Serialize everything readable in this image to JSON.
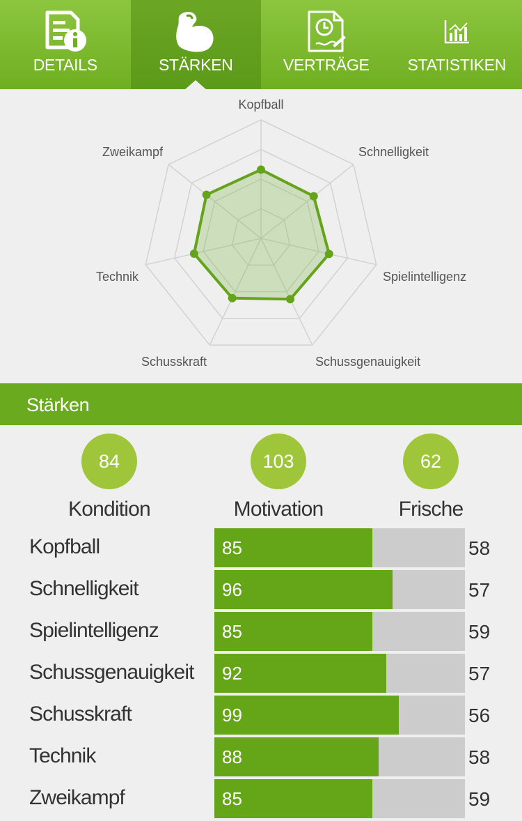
{
  "tabs": [
    {
      "label": "DETAILS",
      "icon": "details-icon"
    },
    {
      "label": "STÄRKEN",
      "icon": "muscle-icon"
    },
    {
      "label": "VERTRÄGE",
      "icon": "contract-icon"
    },
    {
      "label": "STATISTIKEN",
      "icon": "statistics-icon"
    }
  ],
  "active_tab": "STÄRKEN",
  "colors": {
    "accent": "#6aaa1e",
    "accent_light": "#8cc63f",
    "circle": "#9fc63b",
    "bar_track": "#cccccc",
    "bar_fill": "#65a518"
  },
  "chart_data": {
    "type": "radar",
    "axes": [
      "Kopfball",
      "Schnelligkeit",
      "Spielintelligenz",
      "Schussgenauigkeit",
      "Schusskraft",
      "Technik",
      "Zweikampf"
    ],
    "values": [
      58,
      57,
      59,
      57,
      56,
      58,
      59
    ],
    "range": [
      0,
      100
    ],
    "grid_levels": 4
  },
  "section": {
    "title": "Stärken"
  },
  "stats": [
    {
      "label": "Kondition",
      "value": "84"
    },
    {
      "label": "Motivation",
      "value": "103"
    },
    {
      "label": "Frische",
      "value": "62"
    }
  ],
  "attributes": [
    {
      "name": "Kopfball",
      "bar_value": "85",
      "fill_percent": 63,
      "right_value": "58"
    },
    {
      "name": "Schnelligkeit",
      "bar_value": "96",
      "fill_percent": 71,
      "right_value": "57"
    },
    {
      "name": "Spielintelligenz",
      "bar_value": "85",
      "fill_percent": 63,
      "right_value": "59"
    },
    {
      "name": "Schussgenauigkeit",
      "bar_value": "92",
      "fill_percent": 68.5,
      "right_value": "57"
    },
    {
      "name": "Schusskraft",
      "bar_value": "99",
      "fill_percent": 73.5,
      "right_value": "56"
    },
    {
      "name": "Technik",
      "bar_value": "88",
      "fill_percent": 65.5,
      "right_value": "58"
    },
    {
      "name": "Zweikampf",
      "bar_value": "85",
      "fill_percent": 63,
      "right_value": "59"
    }
  ]
}
